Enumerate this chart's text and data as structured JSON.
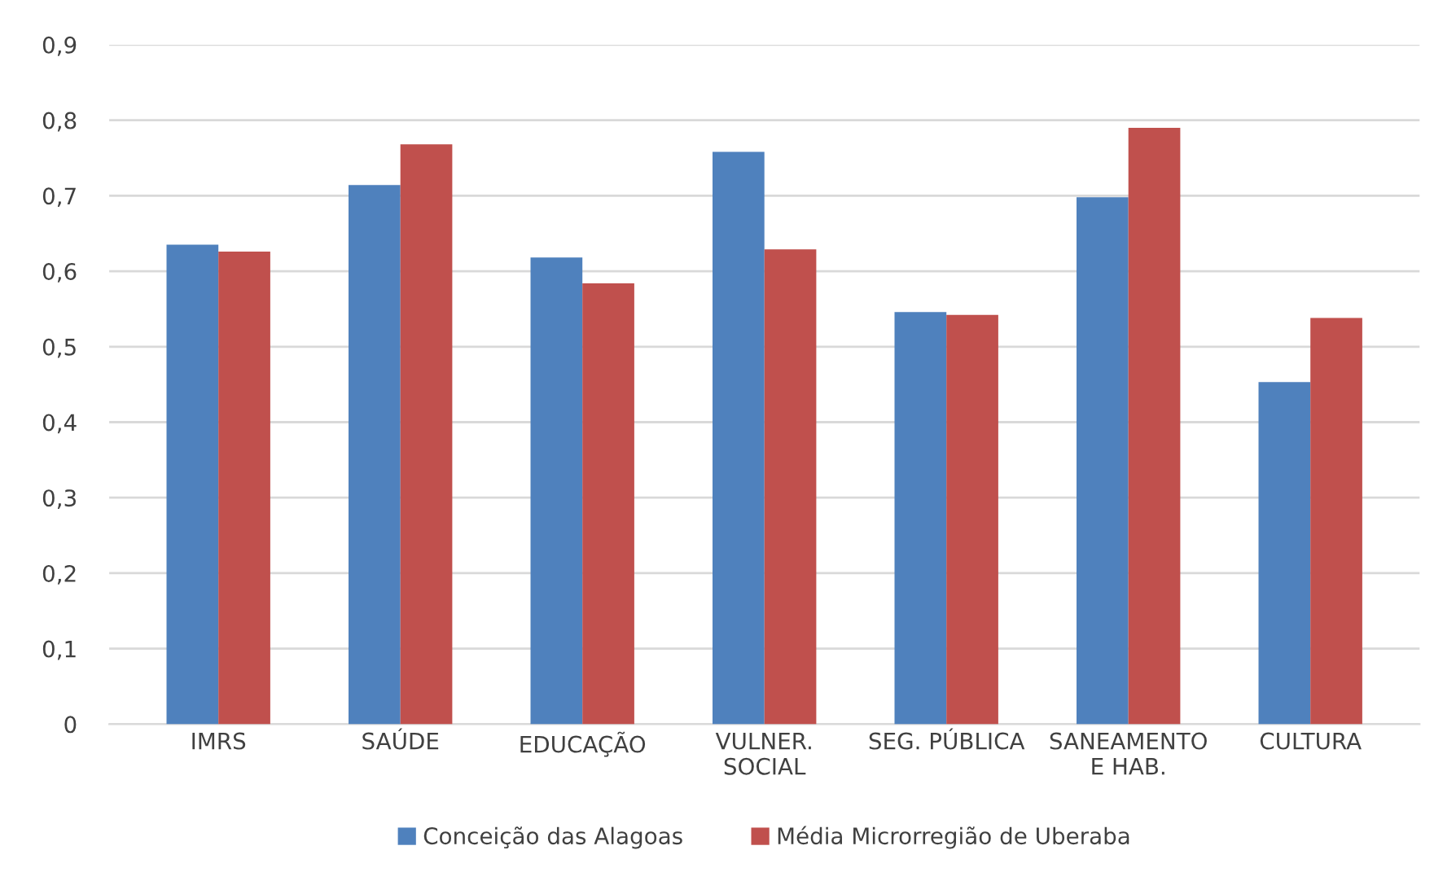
{
  "chart_data": {
    "type": "bar",
    "categories": [
      "IMRS",
      "SAÚDE",
      "EDUCAÇÃO",
      "VULNER.\nSOCIAL",
      "SEG. PÚBLICA",
      "SANEAMENTO\nE HAB.",
      "CULTURA"
    ],
    "series": [
      {
        "name": "Conceição das Alagoas",
        "color": "#4f81bd",
        "values": [
          0.635,
          0.714,
          0.618,
          0.758,
          0.546,
          0.698,
          0.453
        ]
      },
      {
        "name": "Média Microrregião de Uberaba",
        "color": "#c0504d",
        "values": [
          0.626,
          0.768,
          0.584,
          0.629,
          0.542,
          0.79,
          0.538
        ]
      }
    ],
    "ylim": [
      0,
      0.9
    ],
    "yticks": [
      0,
      {
        "value": 0.1,
        "label": "0,1"
      },
      {
        "value": 0.2,
        "label": "0,2"
      },
      {
        "value": 0.3,
        "label": "0,3"
      },
      {
        "value": 0.4,
        "label": "0,4"
      },
      {
        "value": 0.5,
        "label": "0,5"
      },
      {
        "value": 0.6,
        "label": "0,6"
      },
      {
        "value": 0.7,
        "label": "0,7"
      },
      {
        "value": 0.8,
        "label": "0,8"
      },
      {
        "value": 0.9,
        "label": "0,9"
      }
    ],
    "grid": "y",
    "legend": "bottom"
  }
}
